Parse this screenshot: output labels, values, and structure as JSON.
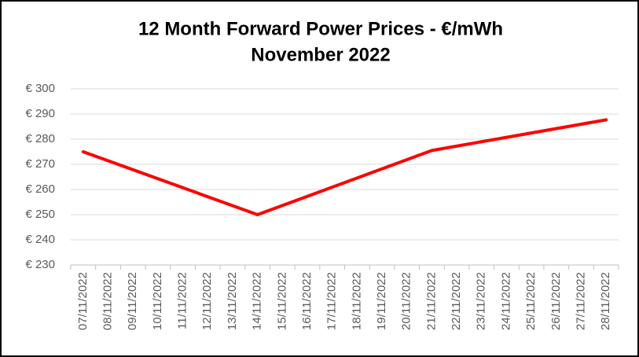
{
  "chart_data": {
    "type": "line",
    "title": [
      "12 Month Forward Power Prices - €/mWh",
      "November 2022"
    ],
    "x": [
      "07/11/2022",
      "14/11/2022",
      "21/11/2022",
      "28/11/2022"
    ],
    "values": [
      275,
      250,
      275.5,
      287.7
    ],
    "color": "#ff0000",
    "xticks": [
      "07/11/2022",
      "08/11/2022",
      "09/11/2022",
      "10/11/2022",
      "11/11/2022",
      "12/11/2022",
      "13/11/2022",
      "14/11/2022",
      "15/11/2022",
      "16/11/2022",
      "17/11/2022",
      "18/11/2022",
      "19/11/2022",
      "20/11/2022",
      "21/11/2022",
      "22/11/2022",
      "23/11/2022",
      "24/11/2022",
      "25/11/2022",
      "26/11/2022",
      "27/11/2022",
      "28/11/2022"
    ],
    "ylim": [
      230,
      300
    ],
    "yticks": [
      {
        "value": 230,
        "label": "€ 230"
      },
      {
        "value": 240,
        "label": "€ 240"
      },
      {
        "value": 250,
        "label": "€ 250"
      },
      {
        "value": 260,
        "label": "€ 260"
      },
      {
        "value": 270,
        "label": "€ 270"
      },
      {
        "value": 280,
        "label": "€ 280"
      },
      {
        "value": 290,
        "label": "€ 290"
      },
      {
        "value": 300,
        "label": "€ 300"
      }
    ],
    "grid": true
  }
}
